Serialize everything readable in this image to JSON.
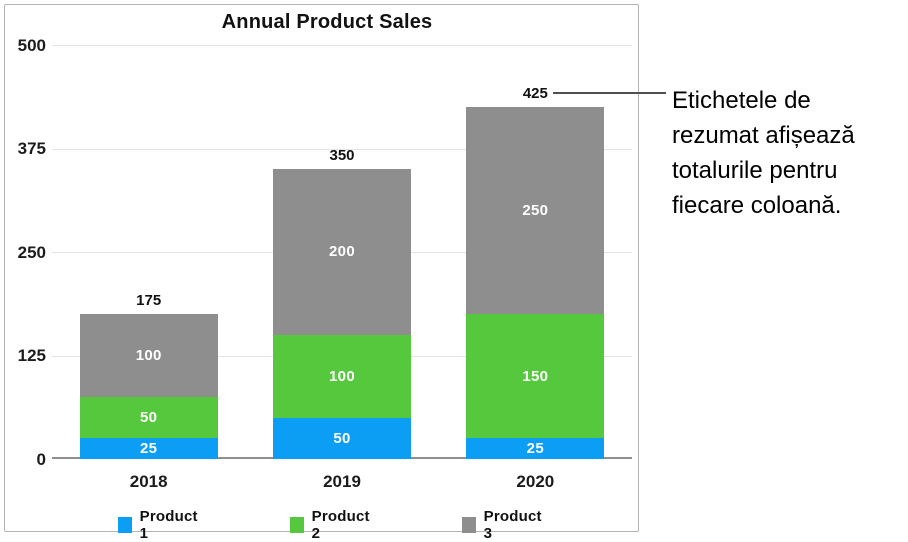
{
  "chart_data": {
    "type": "bar",
    "stacked": true,
    "title": "Annual Product Sales",
    "categories": [
      "2018",
      "2019",
      "2020"
    ],
    "series": [
      {
        "name": "Product 1",
        "color": "#0c9df5",
        "values": [
          25,
          50,
          25
        ]
      },
      {
        "name": "Product 2",
        "color": "#56c83d",
        "values": [
          50,
          100,
          150
        ]
      },
      {
        "name": "Product 3",
        "color": "#8e8e8e",
        "values": [
          100,
          200,
          250
        ]
      }
    ],
    "totals": [
      175,
      350,
      425
    ],
    "y_ticks": [
      0,
      125,
      250,
      375,
      500
    ],
    "ylim": [
      0,
      500
    ],
    "xlabel": "",
    "ylabel": "",
    "grid": true,
    "legend_position": "bottom",
    "value_labels": "inside-white",
    "total_labels": "above-bars"
  },
  "annotation": {
    "text": "Etichetele de rezumat afișează totalurile pentru fiecare coloană.",
    "lines": "Etichetele de\nrezumat afișează\ntotalurile pentru\nfiecare coloană.",
    "callout_target": "425"
  },
  "colors": {
    "product1": "#0c9df5",
    "product2": "#56c83d",
    "product3": "#8e8e8e",
    "gridline": "#e4e4e4",
    "axis_baseline": "#8f8f8f",
    "panel_border": "#b4b4b4",
    "text": "#111111",
    "segment_label_text": "#ffffff",
    "callout_line": "#4f4f4f"
  }
}
